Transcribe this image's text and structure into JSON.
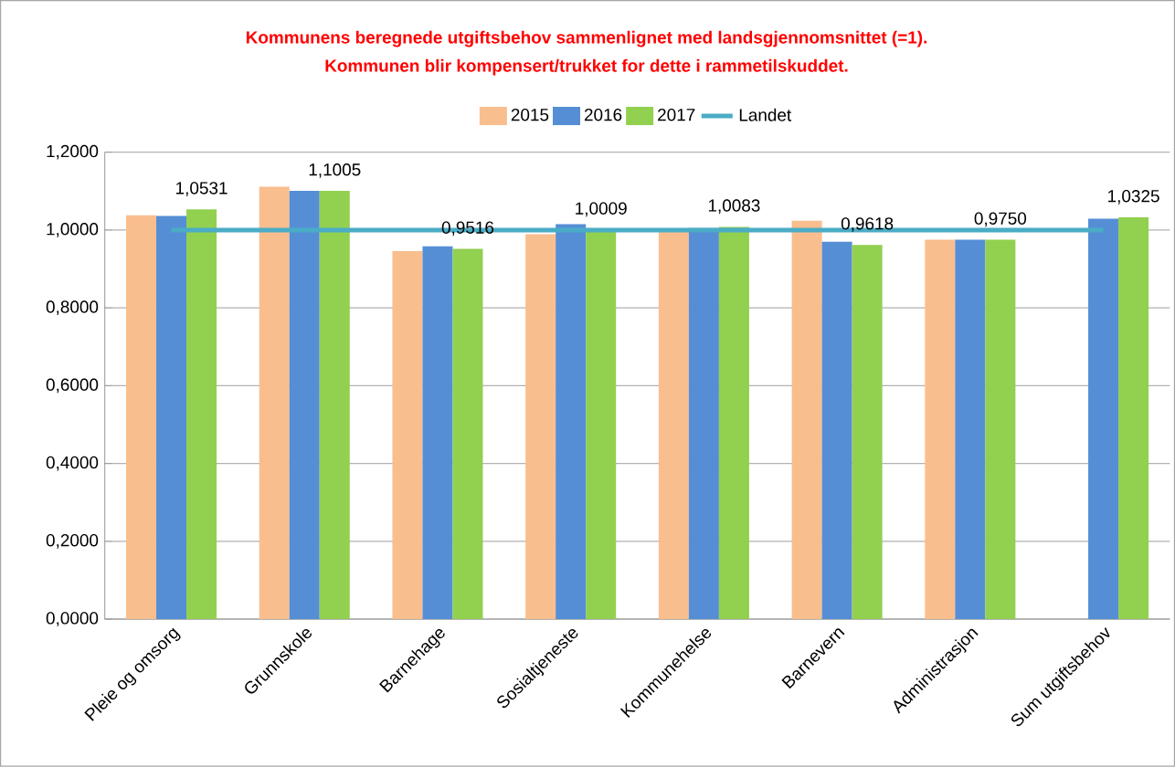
{
  "chart_data": {
    "type": "bar",
    "title": "Kommunens beregnede utgiftsbehov sammenlignet med landsgjennomsnittet (=1).",
    "subtitle": "Kommunen blir kompensert/trukket for dette i rammetilskuddet.",
    "categories": [
      "Pleie og omsorg",
      "Grunnskole",
      "Barnehage",
      "Sosialtjeneste",
      "Kommunehelse",
      "Barnevern",
      "Administrasjon",
      "Sum utgiftsbehov"
    ],
    "series": [
      {
        "name": "2015",
        "color": "#f9be8e",
        "values": [
          1.038,
          1.111,
          0.946,
          0.989,
          0.998,
          1.024,
          0.975,
          null
        ]
      },
      {
        "name": "2016",
        "color": "#558ed5",
        "values": [
          1.036,
          1.101,
          0.958,
          1.015,
          1.005,
          0.97,
          0.975,
          1.029
        ]
      },
      {
        "name": "2017",
        "color": "#92d050",
        "values": [
          1.0531,
          1.1005,
          0.9516,
          1.0009,
          1.0083,
          0.9618,
          0.975,
          1.0325
        ],
        "value_labels": [
          "1,0531",
          "1,1005",
          "0,9516",
          "1,0009",
          "1,0083",
          "0,9618",
          "0,9750",
          "1,0325"
        ]
      },
      {
        "name": "Landet",
        "type": "line",
        "color": "#4bacc6",
        "values": [
          1,
          1,
          1,
          1,
          1,
          1,
          1,
          1
        ]
      }
    ],
    "ylim": [
      0,
      1.2
    ],
    "yticks": [
      {
        "value": 0,
        "label": "0,0000"
      },
      {
        "value": 0.2,
        "label": "0,2000"
      },
      {
        "value": 0.4,
        "label": "0,4000"
      },
      {
        "value": 0.6,
        "label": "0,6000"
      },
      {
        "value": 0.8,
        "label": "0,8000"
      },
      {
        "value": 1.0,
        "label": "1,0000"
      },
      {
        "value": 1.2,
        "label": "1,2000"
      }
    ],
    "grid": "y",
    "legend": "top"
  }
}
